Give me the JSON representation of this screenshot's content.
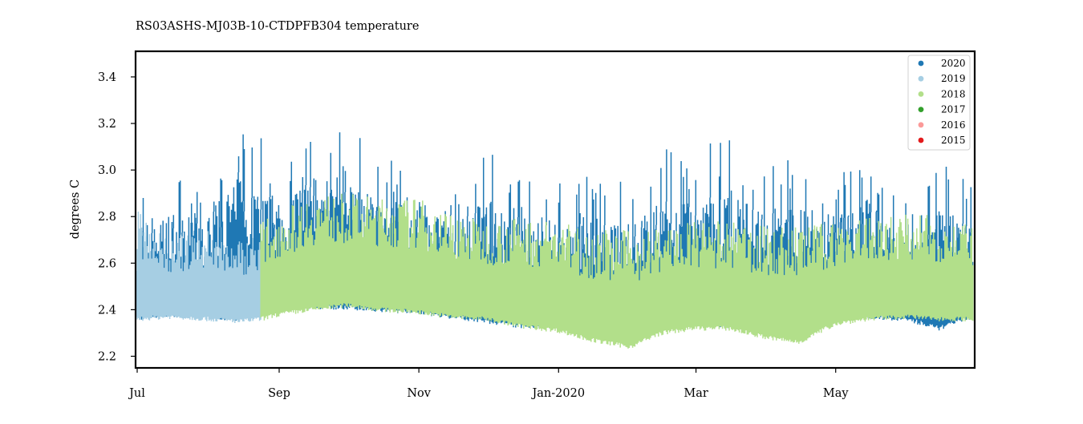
{
  "chart_data": {
    "type": "scatter",
    "title": "RS03ASHS-MJ03B-10-CTDPFB304 temperature",
    "xlabel": "",
    "ylabel": "degrees C",
    "x_range": [
      "2019-07-01",
      "2020-06-30"
    ],
    "ylim": [
      2.15,
      3.51
    ],
    "x_ticks": [
      {
        "date": "2019-07-01",
        "label": "Jul"
      },
      {
        "date": "2019-09-01",
        "label": "Sep"
      },
      {
        "date": "2019-11-01",
        "label": "Nov"
      },
      {
        "date": "2020-01-01",
        "label": "Jan-2020"
      },
      {
        "date": "2020-03-01",
        "label": "Mar"
      },
      {
        "date": "2020-05-01",
        "label": "May"
      }
    ],
    "y_ticks": [
      2.2,
      2.4,
      2.6,
      2.8,
      3.0,
      3.2,
      3.4
    ],
    "y_tick_labels": [
      "2.2",
      "2.4",
      "2.6",
      "2.8",
      "3.0",
      "3.2",
      "3.4"
    ],
    "grid": false,
    "legend_position": "top-right",
    "series": [
      {
        "name": "2020",
        "color": "#1f78b4",
        "drawn": true,
        "dates": [
          "2019-07-01",
          "2019-07-15",
          "2019-08-01",
          "2019-08-15",
          "2019-09-01",
          "2019-09-15",
          "2019-10-01",
          "2019-10-15",
          "2019-11-01",
          "2019-11-15",
          "2019-12-01",
          "2019-12-15",
          "2020-01-01",
          "2020-01-15",
          "2020-02-01",
          "2020-02-15",
          "2020-03-01",
          "2020-03-15",
          "2020-04-01",
          "2020-04-15",
          "2020-05-01",
          "2020-05-15",
          "2020-06-01",
          "2020-06-15",
          "2020-06-30"
        ],
        "low": [
          2.36,
          2.38,
          2.37,
          2.36,
          2.4,
          2.41,
          2.41,
          2.4,
          2.39,
          2.37,
          2.35,
          2.33,
          2.33,
          2.3,
          2.32,
          2.34,
          2.34,
          2.33,
          2.33,
          2.34,
          2.36,
          2.37,
          2.36,
          2.32,
          2.37
        ],
        "high": [
          2.95,
          2.98,
          2.98,
          3.3,
          3.05,
          3.25,
          3.2,
          3.05,
          3.05,
          3.0,
          3.1,
          3.0,
          2.98,
          2.98,
          2.95,
          3.1,
          3.08,
          3.18,
          3.05,
          3.08,
          3.0,
          3.1,
          2.85,
          3.05,
          2.95
        ]
      },
      {
        "name": "2019",
        "color": "#a6cee3",
        "drawn": true,
        "dates": [
          "2019-07-01",
          "2019-07-15",
          "2019-08-01",
          "2019-08-15",
          "2019-08-24"
        ],
        "low": [
          2.36,
          2.37,
          2.36,
          2.35,
          2.36
        ],
        "high": [
          2.85,
          2.7,
          2.75,
          2.7,
          2.75
        ]
      },
      {
        "name": "2018",
        "color": "#b2df8a",
        "drawn": true,
        "dates": [
          "2019-08-24",
          "2019-09-01",
          "2019-09-15",
          "2019-10-01",
          "2019-10-15",
          "2019-11-01",
          "2019-11-15",
          "2019-12-01",
          "2019-12-15",
          "2020-01-01",
          "2020-01-15",
          "2020-02-01",
          "2020-02-15",
          "2020-03-01",
          "2020-03-15",
          "2020-04-01",
          "2020-04-15",
          "2020-05-01",
          "2020-05-15",
          "2020-06-01",
          "2020-06-15",
          "2020-06-30"
        ],
        "low": [
          2.36,
          2.38,
          2.4,
          2.42,
          2.4,
          2.39,
          2.37,
          2.36,
          2.33,
          2.31,
          2.27,
          2.24,
          2.3,
          2.32,
          2.32,
          2.28,
          2.26,
          2.34,
          2.36,
          2.37,
          2.36,
          2.36
        ],
        "high": [
          2.78,
          2.82,
          2.9,
          2.9,
          2.88,
          2.88,
          2.82,
          2.78,
          2.8,
          2.78,
          2.75,
          2.74,
          2.76,
          2.78,
          2.78,
          2.76,
          2.76,
          2.78,
          2.8,
          2.82,
          2.8,
          2.76
        ]
      },
      {
        "name": "2017",
        "color": "#33a02c",
        "drawn": false
      },
      {
        "name": "2016",
        "color": "#fb9a99",
        "drawn": false
      },
      {
        "name": "2015",
        "color": "#e31a1c",
        "drawn": false
      }
    ]
  }
}
